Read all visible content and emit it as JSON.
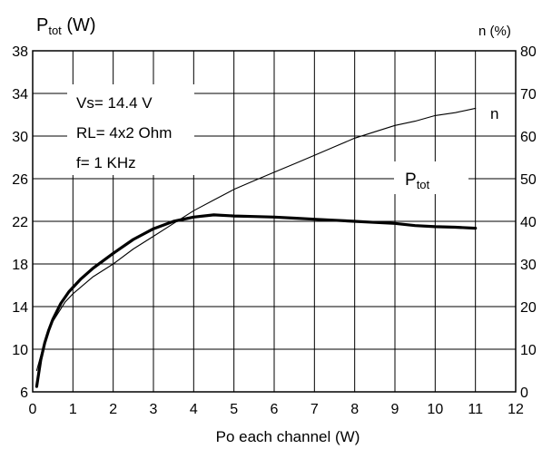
{
  "chart_data": {
    "type": "line",
    "xlabel": "Po each channel (W)",
    "ylabel_left": {
      "main": "P",
      "sub": "tot",
      "unit": " (W)"
    },
    "ylabel_right": "n (%)",
    "xlim": [
      0,
      12
    ],
    "ylim_left": [
      6,
      38
    ],
    "ylim_right": [
      0,
      80
    ],
    "x_ticks": [
      0,
      1,
      2,
      3,
      4,
      5,
      6,
      7,
      8,
      9,
      10,
      11,
      12
    ],
    "y_left_ticks": [
      6,
      10,
      14,
      18,
      22,
      26,
      30,
      34,
      38
    ],
    "y_right_ticks": [
      0,
      10,
      20,
      30,
      40,
      50,
      60,
      70,
      80
    ],
    "grid": true,
    "conditions": [
      "Vs= 14.4 V",
      "RL= 4x2 Ohm",
      "f= 1 KHz"
    ],
    "series": [
      {
        "name": "Ptot",
        "label_main": "P",
        "label_sub": "tot",
        "axis": "left",
        "line": "thick",
        "x": [
          0.1,
          0.2,
          0.3,
          0.4,
          0.5,
          0.7,
          0.9,
          1.2,
          1.5,
          2.0,
          2.5,
          3.0,
          3.5,
          4.0,
          4.5,
          5.0,
          5.5,
          6.0,
          6.5,
          7.0,
          7.5,
          8.0,
          8.5,
          9.0,
          9.5,
          10.0,
          10.5,
          11.0
        ],
        "y": [
          6.5,
          9.0,
          10.6,
          11.8,
          12.8,
          14.3,
          15.4,
          16.6,
          17.6,
          19.0,
          20.3,
          21.3,
          22.0,
          22.4,
          22.6,
          22.5,
          22.45,
          22.4,
          22.3,
          22.2,
          22.1,
          22.0,
          21.9,
          21.8,
          21.6,
          21.5,
          21.45,
          21.35
        ]
      },
      {
        "name": "n",
        "label_main": "n",
        "axis": "right",
        "line": "thin",
        "x": [
          0.1,
          0.2,
          0.3,
          0.5,
          0.8,
          1.0,
          1.5,
          2.0,
          2.5,
          3.0,
          3.5,
          4.0,
          4.5,
          5.0,
          5.5,
          6.0,
          6.5,
          7.0,
          7.5,
          8.0,
          8.5,
          9.0,
          9.5,
          10.0,
          10.5,
          11.0
        ],
        "y": [
          5.0,
          8.5,
          12.0,
          16.5,
          21.0,
          23.0,
          27.0,
          30.0,
          33.5,
          36.5,
          39.5,
          42.5,
          45.0,
          47.5,
          49.5,
          51.5,
          53.5,
          55.5,
          57.5,
          59.5,
          61.0,
          62.5,
          63.5,
          64.8,
          65.5,
          66.5
        ]
      }
    ]
  }
}
